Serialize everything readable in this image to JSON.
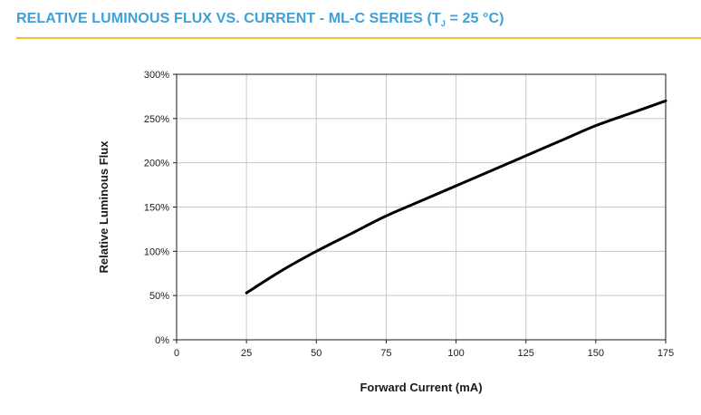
{
  "header": {
    "title_main": "RELATIVE LUMINOUS FLUX VS. CURRENT - ML-C SERIES (T",
    "title_sub": "J",
    "title_end": " = 25 °C)",
    "accent_color": "#3f9fd9",
    "rule_color": "#f0c52b"
  },
  "chart_data": {
    "type": "line",
    "xlabel": "Forward Current (mA)",
    "ylabel": "Relative Luminous Flux",
    "xlim": [
      0,
      175
    ],
    "ylim": [
      0,
      300
    ],
    "x_ticks": [
      0,
      25,
      50,
      75,
      100,
      125,
      150,
      175
    ],
    "x_tick_labels": [
      "0",
      "25",
      "50",
      "75",
      "100",
      "125",
      "150",
      "175"
    ],
    "y_ticks": [
      0,
      50,
      100,
      150,
      200,
      250,
      300
    ],
    "y_tick_labels": [
      "0%",
      "50%",
      "100%",
      "150%",
      "200%",
      "250%",
      "300%"
    ],
    "grid": true,
    "series": [
      {
        "x": [
          25,
          37.5,
          50,
          62.5,
          75,
          87.5,
          100,
          112.5,
          125,
          137.5,
          150,
          162.5,
          175
        ],
        "y": [
          53,
          78,
          100,
          120,
          140,
          157,
          174,
          191,
          208,
          225,
          242,
          256,
          270
        ],
        "color": "#000000"
      }
    ]
  }
}
